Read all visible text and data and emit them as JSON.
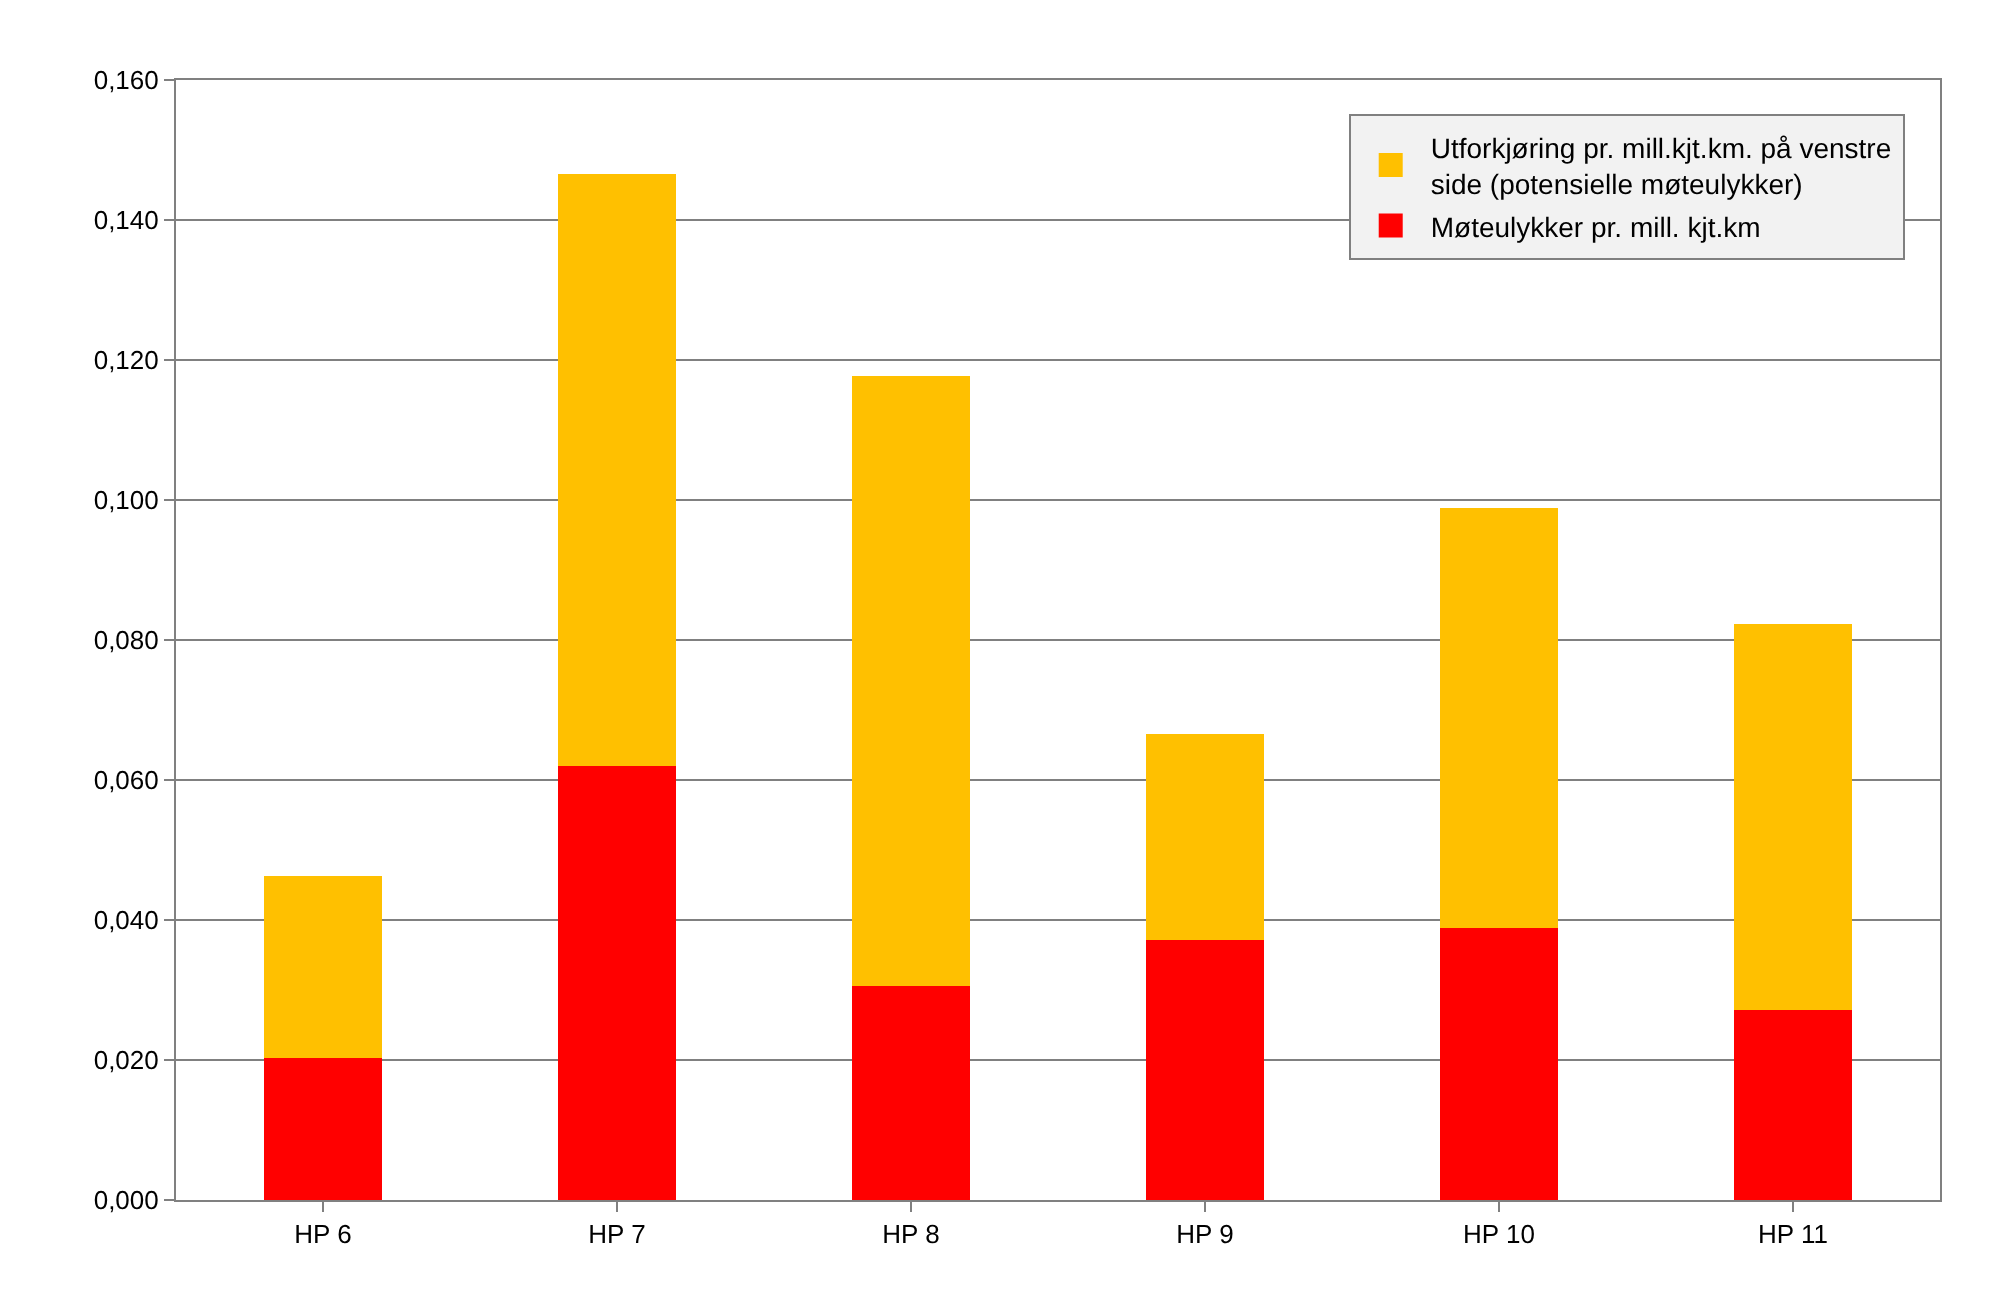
{
  "chart_data": {
    "type": "bar",
    "stacked": true,
    "categories": [
      "HP 6",
      "HP 7",
      "HP 8",
      "HP 9",
      "HP 10",
      "HP 11"
    ],
    "series": [
      {
        "name": "Møteulykker pr. mill. kjt.km",
        "color": "#ff0000",
        "values": [
          0.0203,
          0.062,
          0.0306,
          0.0371,
          0.0389,
          0.0271
        ]
      },
      {
        "name": "Utforkjøring pr. mill.kjt.km. på venstre side (potensielle møteulykker)",
        "color": "#ffc000",
        "values": [
          0.026,
          0.0846,
          0.0871,
          0.0295,
          0.06,
          0.0552
        ]
      }
    ],
    "ylim": [
      0,
      0.16
    ],
    "yticks": [
      {
        "value": 0,
        "label": "0,000"
      },
      {
        "value": 0.02,
        "label": "0,020"
      },
      {
        "value": 0.04,
        "label": "0,040"
      },
      {
        "value": 0.06,
        "label": "0,060"
      },
      {
        "value": 0.08,
        "label": "0,080"
      },
      {
        "value": 0.1,
        "label": "0,100"
      },
      {
        "value": 0.12,
        "label": "0,120"
      },
      {
        "value": 0.14,
        "label": "0,140"
      },
      {
        "value": 0.16,
        "label": "0,160"
      }
    ],
    "grid": "y",
    "legend": "top right"
  }
}
